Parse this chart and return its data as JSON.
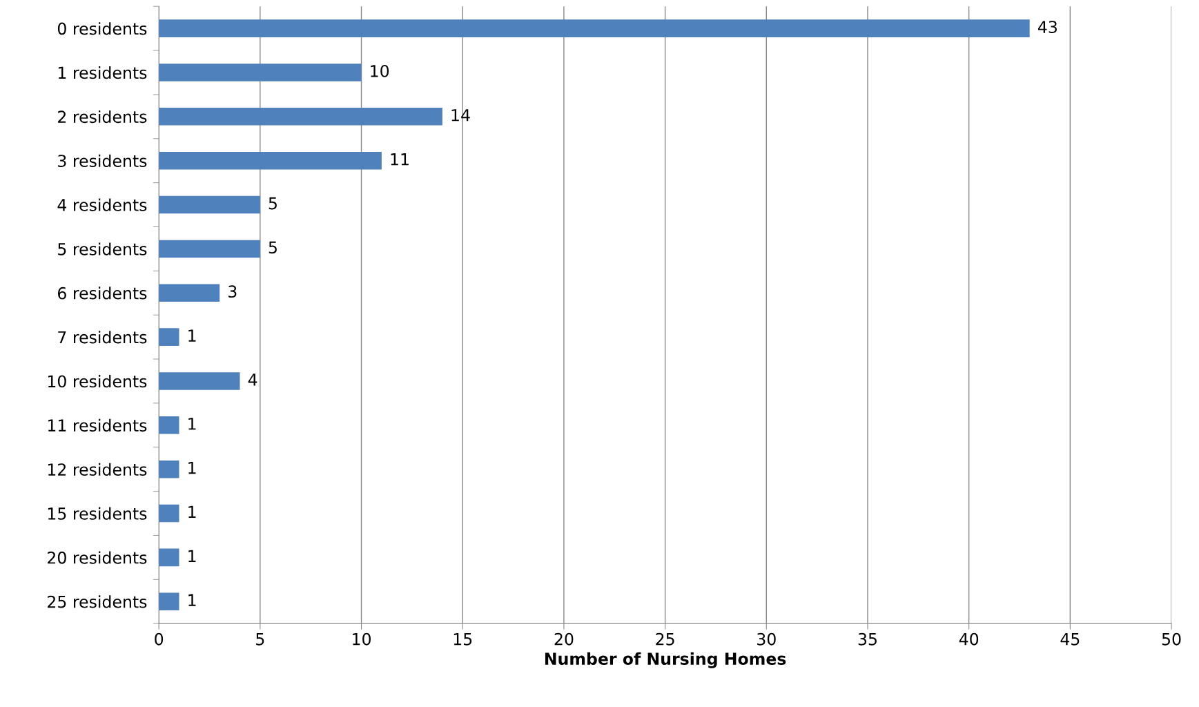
{
  "chart_data": {
    "type": "bar",
    "orientation": "horizontal",
    "xlabel": "Number of Nursing Homes",
    "categories": [
      "0 residents",
      "1 residents",
      "2 residents",
      "3 residents",
      "4 residents",
      "5 residents",
      "6 residents",
      "7 residents",
      "10 residents",
      "11 residents",
      "12 residents",
      "15 residents",
      "20 residents",
      "25 residents"
    ],
    "values": [
      43,
      10,
      14,
      11,
      5,
      5,
      3,
      1,
      4,
      1,
      1,
      1,
      1,
      1
    ],
    "color": "#4f81bd",
    "xlim": [
      0,
      50
    ],
    "xticks": [
      0,
      5,
      10,
      15,
      20,
      25,
      30,
      35,
      40,
      45,
      50
    ],
    "grid": "x",
    "data_labels": true,
    "legend": false
  }
}
